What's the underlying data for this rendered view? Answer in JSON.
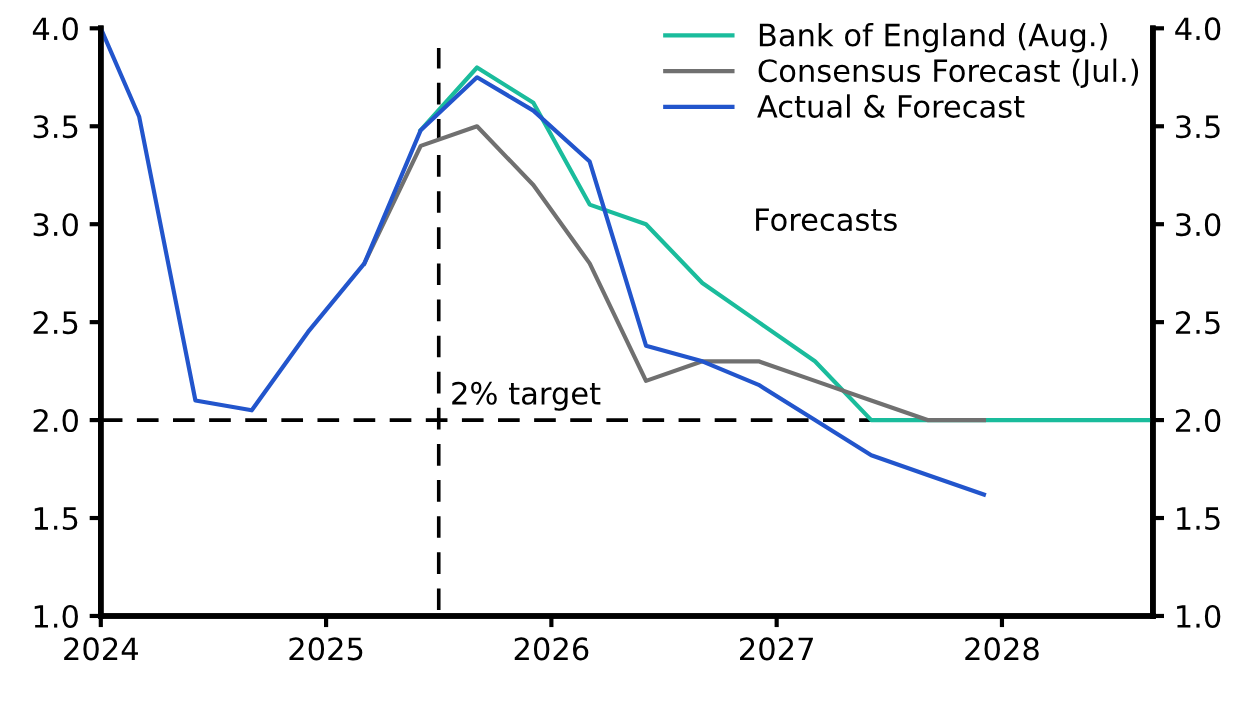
{
  "chart_data": {
    "type": "line",
    "x": [
      2024.0,
      2024.17,
      2024.42,
      2024.67,
      2024.92,
      2025.17,
      2025.42,
      2025.67,
      2025.92,
      2026.17,
      2026.42,
      2026.67,
      2026.92,
      2027.17,
      2027.42,
      2027.67,
      2027.92,
      2028.17,
      2028.42,
      2028.67
    ],
    "series": [
      {
        "name": "Bank of England (Aug.)",
        "color": "#1abc9c",
        "values": [
          null,
          null,
          null,
          null,
          null,
          null,
          3.48,
          3.8,
          3.62,
          3.1,
          3.0,
          2.7,
          2.5,
          2.3,
          2.0,
          2.0,
          2.0,
          2.0,
          2.0,
          2.0
        ]
      },
      {
        "name": "Consensus Forecast (Jul.)",
        "color": "#707070",
        "values": [
          null,
          null,
          null,
          null,
          null,
          2.8,
          3.4,
          3.5,
          3.2,
          2.8,
          2.2,
          2.3,
          2.3,
          2.2,
          2.1,
          2.0,
          2.0,
          null,
          null,
          null
        ]
      },
      {
        "name": "Actual & Forecast",
        "color": "#2255cc",
        "values": [
          4.0,
          3.55,
          2.1,
          2.05,
          2.45,
          2.8,
          3.48,
          3.75,
          3.58,
          3.32,
          2.38,
          2.3,
          2.18,
          2.0,
          1.82,
          1.72,
          1.62,
          null,
          null,
          null
        ]
      }
    ],
    "xlim": [
      2024,
      2028.67
    ],
    "xticks": [
      2024,
      2025,
      2026,
      2027,
      2028
    ],
    "ylim": [
      1.0,
      4.0
    ],
    "yticks": [
      {
        "value": 1.0,
        "label": "1.0"
      },
      {
        "value": 1.5,
        "label": "1.5"
      },
      {
        "value": 2.0,
        "label": "2.0"
      },
      {
        "value": 2.5,
        "label": "2.5"
      },
      {
        "value": 3.0,
        "label": "3.0"
      },
      {
        "value": 3.5,
        "label": "3.5"
      },
      {
        "value": 4.0,
        "label": "4.0"
      }
    ],
    "y2lim": [
      1.0,
      4.0
    ],
    "y2ticks": [
      {
        "value": 1.0,
        "label": "1.0"
      },
      {
        "value": 1.5,
        "label": "1.5"
      },
      {
        "value": 2.0,
        "label": "2.0"
      },
      {
        "value": 2.5,
        "label": "2.5"
      },
      {
        "value": 3.0,
        "label": "3.0"
      },
      {
        "value": 3.5,
        "label": "3.5"
      },
      {
        "value": 4.0,
        "label": "4.0"
      }
    ],
    "ref_lines": [
      {
        "axis": "y",
        "value": 2.0,
        "label": "2% target",
        "color": "#000000",
        "line_style": "dashed"
      },
      {
        "axis": "x",
        "value": 2025.5,
        "color": "#000000",
        "line_style": "dashed"
      }
    ],
    "annotations": [
      "Forecasts"
    ],
    "legend": "top right",
    "grid": false,
    "marker": "none",
    "line_style": "solid"
  }
}
